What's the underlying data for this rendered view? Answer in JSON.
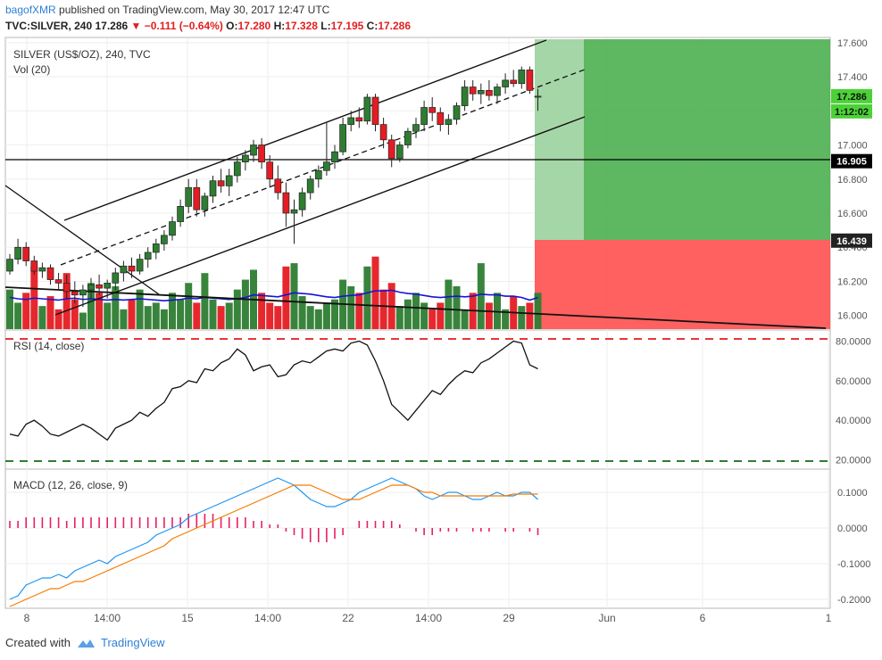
{
  "header": {
    "author": "bagofXMR",
    "published": "published on TradingView.com, May 30, 2017 12:47 UTC",
    "symbol": "TVC:SILVER, 240",
    "last": "17.286",
    "change": "▼ −0.111 (−0.64%)",
    "o_label": "O:",
    "o_val": "17.280",
    "h_label": "H:",
    "h_val": "17.328",
    "l_label": "L:",
    "l_val": "17.195",
    "c_label": "C:",
    "c_val": "17.286"
  },
  "panes": {
    "price_title": "SILVER (US$/OZ), 240, TVC",
    "vol_title": "Vol (20)",
    "rsi_title": "RSI (14, close)",
    "macd_title": "MACD (12, 26, close, 9)"
  },
  "footer": {
    "created": "Created with",
    "brand": "TradingView"
  },
  "colors": {
    "up": "#2e7d32",
    "down": "#e51c23",
    "vol_ma": "#1414d4",
    "macd": "#2196f3",
    "signal": "#f57c00",
    "hist": "#e91e63",
    "target": "#4caf50",
    "stop": "#ff5252",
    "level_line": "#000000",
    "rsi_band": "#e53935"
  },
  "chart_data": [
    {
      "type": "candlestick",
      "title": "SILVER (US$/OZ), 240, TVC",
      "y_ticks": [
        "17.600",
        "17.400",
        "17.200",
        "17.000",
        "16.800",
        "16.600",
        "16.400",
        "16.200",
        "16.000"
      ],
      "x_ticks": [
        "8",
        "14:00",
        "15",
        "14:00",
        "22",
        "14:00",
        "29",
        "Jun",
        "6",
        "1"
      ],
      "ylim": [
        15.92,
        17.62
      ],
      "badges": [
        "17.286",
        "1:12:02",
        "16.905",
        "16.439"
      ],
      "horizontal_level": 16.905,
      "position_entry": 16.439,
      "position_target": 17.6,
      "ohlc": [
        [
          16.26,
          16.36,
          16.24,
          16.33
        ],
        [
          16.33,
          16.45,
          16.3,
          16.4
        ],
        [
          16.4,
          16.43,
          16.29,
          16.32
        ],
        [
          16.32,
          16.35,
          16.24,
          16.26
        ],
        [
          16.26,
          16.31,
          16.22,
          16.28
        ],
        [
          16.28,
          16.3,
          16.18,
          16.21
        ],
        [
          16.21,
          16.25,
          16.15,
          16.19
        ],
        [
          16.19,
          16.24,
          16.1,
          16.14
        ],
        [
          16.14,
          16.2,
          16.07,
          16.12
        ],
        [
          16.12,
          16.18,
          16.05,
          16.15
        ],
        [
          16.15,
          16.22,
          16.1,
          16.18
        ],
        [
          16.18,
          16.24,
          16.12,
          16.16
        ],
        [
          16.16,
          16.21,
          16.1,
          16.19
        ],
        [
          16.19,
          16.28,
          16.15,
          16.25
        ],
        [
          16.25,
          16.32,
          16.2,
          16.29
        ],
        [
          16.29,
          16.34,
          16.22,
          16.26
        ],
        [
          16.26,
          16.36,
          16.24,
          16.33
        ],
        [
          16.33,
          16.4,
          16.28,
          16.37
        ],
        [
          16.37,
          16.45,
          16.33,
          16.42
        ],
        [
          16.42,
          16.5,
          16.38,
          16.47
        ],
        [
          16.47,
          16.58,
          16.44,
          16.55
        ],
        [
          16.55,
          16.68,
          16.52,
          16.64
        ],
        [
          16.64,
          16.8,
          16.6,
          16.75
        ],
        [
          16.75,
          16.8,
          16.58,
          16.62
        ],
        [
          16.62,
          16.72,
          16.58,
          16.7
        ],
        [
          16.7,
          16.82,
          16.66,
          16.79
        ],
        [
          16.79,
          16.86,
          16.72,
          16.76
        ],
        [
          16.76,
          16.86,
          16.7,
          16.82
        ],
        [
          16.82,
          16.93,
          16.78,
          16.9
        ],
        [
          16.9,
          16.97,
          16.85,
          16.94
        ],
        [
          16.94,
          17.03,
          16.9,
          17.0
        ],
        [
          17.0,
          17.04,
          16.86,
          16.9
        ],
        [
          16.9,
          16.94,
          16.75,
          16.8
        ],
        [
          16.8,
          16.88,
          16.68,
          16.72
        ],
        [
          16.72,
          16.78,
          16.52,
          16.6
        ],
        [
          16.6,
          16.68,
          16.42,
          16.62
        ],
        [
          16.62,
          16.75,
          16.58,
          16.72
        ],
        [
          16.72,
          16.82,
          16.68,
          16.8
        ],
        [
          16.8,
          16.88,
          16.75,
          16.85
        ],
        [
          16.85,
          17.13,
          16.82,
          16.9
        ],
        [
          16.9,
          17.0,
          16.86,
          16.96
        ],
        [
          16.96,
          17.16,
          16.94,
          17.12
        ],
        [
          17.12,
          17.2,
          17.08,
          17.16
        ],
        [
          17.16,
          17.22,
          17.1,
          17.14
        ],
        [
          17.14,
          17.3,
          17.12,
          17.28
        ],
        [
          17.28,
          17.3,
          17.08,
          17.12
        ],
        [
          17.12,
          17.16,
          16.98,
          17.03
        ],
        [
          17.03,
          17.06,
          16.87,
          16.92
        ],
        [
          16.92,
          17.02,
          16.9,
          17.0
        ],
        [
          17.0,
          17.1,
          16.98,
          17.08
        ],
        [
          17.08,
          17.16,
          17.04,
          17.12
        ],
        [
          17.12,
          17.26,
          17.08,
          17.22
        ],
        [
          17.22,
          17.28,
          17.14,
          17.19
        ],
        [
          17.19,
          17.22,
          17.08,
          17.12
        ],
        [
          17.12,
          17.18,
          17.06,
          17.15
        ],
        [
          17.15,
          17.25,
          17.12,
          17.23
        ],
        [
          17.23,
          17.38,
          17.2,
          17.34
        ],
        [
          17.34,
          17.38,
          17.26,
          17.3
        ],
        [
          17.3,
          17.36,
          17.24,
          17.32
        ],
        [
          17.32,
          17.38,
          17.26,
          17.29
        ],
        [
          17.29,
          17.36,
          17.24,
          17.34
        ],
        [
          17.34,
          17.42,
          17.3,
          17.38
        ],
        [
          17.38,
          17.44,
          17.34,
          17.36
        ],
        [
          17.36,
          17.46,
          17.33,
          17.44
        ],
        [
          17.44,
          17.46,
          17.3,
          17.32
        ],
        [
          17.28,
          17.33,
          17.2,
          17.286
        ]
      ],
      "volume": [
        60,
        40,
        55,
        95,
        35,
        50,
        30,
        85,
        45,
        25,
        70,
        55,
        40,
        65,
        30,
        45,
        60,
        35,
        40,
        30,
        55,
        45,
        70,
        40,
        85,
        45,
        35,
        40,
        60,
        75,
        90,
        55,
        40,
        35,
        95,
        100,
        50,
        35,
        30,
        40,
        45,
        75,
        65,
        55,
        95,
        110,
        60,
        70,
        35,
        45,
        55,
        40,
        30,
        40,
        75,
        65,
        30,
        55,
        100,
        40,
        55,
        30,
        50,
        35,
        40,
        55
      ],
      "volume_ma": [
        48,
        46,
        45,
        47,
        46,
        45,
        44,
        46,
        47,
        45,
        46,
        45,
        44,
        45,
        44,
        45,
        46,
        45,
        44,
        43,
        44,
        45,
        47,
        46,
        48,
        47,
        46,
        45,
        46,
        48,
        52,
        51,
        50,
        49,
        52,
        55,
        54,
        53,
        51,
        49,
        48,
        50,
        51,
        52,
        55,
        58,
        58,
        59,
        56,
        54,
        53,
        51,
        49,
        48,
        49,
        50,
        49,
        50,
        53,
        52,
        52,
        50,
        50,
        48,
        44,
        48
      ]
    },
    {
      "type": "line",
      "title": "RSI (14, close)",
      "y_ticks": [
        "80.0000",
        "60.0000",
        "40.0000",
        "20.0000"
      ],
      "ylim": [
        18,
        82
      ],
      "bands": [
        80,
        20
      ],
      "series": [
        {
          "values": [
            33,
            32,
            38,
            40,
            37,
            33,
            32,
            34,
            36,
            38,
            36,
            33,
            30,
            36,
            38,
            40,
            44,
            42,
            46,
            49,
            56,
            57,
            60,
            59,
            66,
            65,
            69,
            71,
            76,
            73,
            65,
            67,
            68,
            62,
            63,
            68,
            70,
            69,
            72,
            75,
            76,
            75,
            79,
            80,
            78,
            70,
            60,
            48,
            44,
            40,
            45,
            50,
            55,
            53,
            58,
            62,
            65,
            64,
            69,
            71,
            74,
            77,
            80,
            79,
            68,
            66
          ]
        }
      ]
    },
    {
      "type": "line",
      "title": "MACD (12, 26, close, 9)",
      "y_ticks": [
        "0.1000",
        "0.0000",
        "-0.1000",
        "-0.2000"
      ],
      "ylim": [
        -0.22,
        0.13
      ],
      "series": [
        {
          "name": "MACD",
          "values": [
            -0.2,
            -0.19,
            -0.16,
            -0.15,
            -0.14,
            -0.14,
            -0.13,
            -0.14,
            -0.12,
            -0.11,
            -0.1,
            -0.09,
            -0.1,
            -0.08,
            -0.07,
            -0.06,
            -0.05,
            -0.04,
            -0.02,
            -0.01,
            0.0,
            0.01,
            0.03,
            0.04,
            0.05,
            0.06,
            0.07,
            0.08,
            0.09,
            0.1,
            0.11,
            0.12,
            0.13,
            0.14,
            0.13,
            0.12,
            0.1,
            0.08,
            0.07,
            0.06,
            0.06,
            0.07,
            0.08,
            0.1,
            0.11,
            0.12,
            0.13,
            0.14,
            0.13,
            0.12,
            0.11,
            0.09,
            0.08,
            0.09,
            0.1,
            0.1,
            0.09,
            0.08,
            0.08,
            0.09,
            0.1,
            0.09,
            0.09,
            0.1,
            0.1,
            0.08
          ]
        },
        {
          "name": "Signal",
          "values": [
            -0.22,
            -0.21,
            -0.2,
            -0.19,
            -0.18,
            -0.17,
            -0.17,
            -0.16,
            -0.15,
            -0.15,
            -0.14,
            -0.13,
            -0.12,
            -0.11,
            -0.1,
            -0.09,
            -0.08,
            -0.07,
            -0.06,
            -0.05,
            -0.03,
            -0.02,
            -0.01,
            0.0,
            0.01,
            0.02,
            0.03,
            0.04,
            0.05,
            0.06,
            0.07,
            0.08,
            0.09,
            0.1,
            0.11,
            0.12,
            0.12,
            0.12,
            0.11,
            0.1,
            0.09,
            0.08,
            0.08,
            0.08,
            0.09,
            0.1,
            0.11,
            0.12,
            0.12,
            0.12,
            0.11,
            0.1,
            0.1,
            0.09,
            0.09,
            0.09,
            0.09,
            0.09,
            0.09,
            0.09,
            0.09,
            0.09,
            0.095,
            0.095,
            0.095,
            0.095
          ]
        }
      ],
      "histogram": [
        0.02,
        0.02,
        0.03,
        0.03,
        0.03,
        0.03,
        0.03,
        0.02,
        0.03,
        0.03,
        0.03,
        0.03,
        0.03,
        0.03,
        0.03,
        0.03,
        0.03,
        0.03,
        0.03,
        0.03,
        0.03,
        0.03,
        0.04,
        0.04,
        0.04,
        0.04,
        0.03,
        0.03,
        0.03,
        0.03,
        0.02,
        0.02,
        0.01,
        0.01,
        -0.01,
        -0.02,
        -0.03,
        -0.04,
        -0.04,
        -0.04,
        -0.03,
        -0.02,
        0.0,
        0.02,
        0.02,
        0.02,
        0.02,
        0.02,
        0.01,
        0.0,
        -0.01,
        -0.02,
        -0.02,
        -0.01,
        -0.01,
        -0.01,
        0.0,
        -0.01,
        -0.01,
        -0.01,
        0.0,
        -0.01,
        -0.01,
        0.0,
        -0.01,
        -0.02
      ]
    }
  ]
}
